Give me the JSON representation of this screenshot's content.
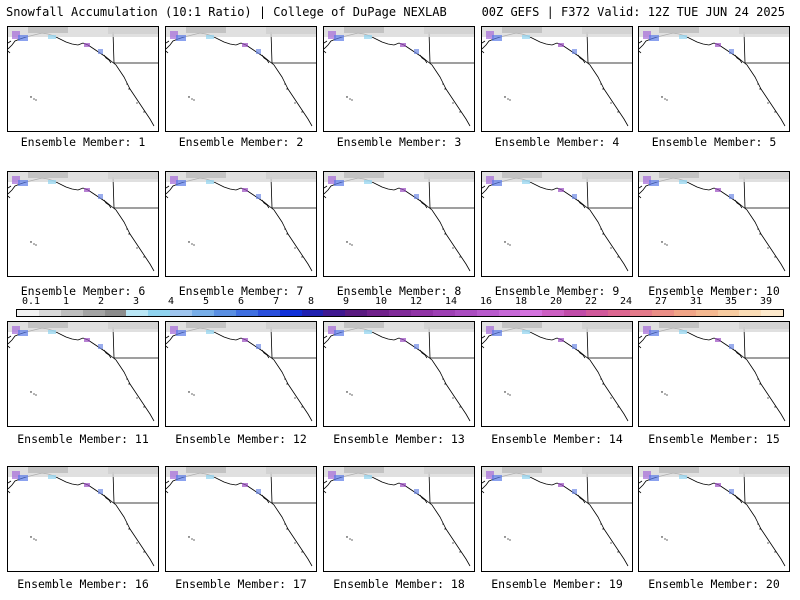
{
  "header": {
    "left": "Snowfall Accumulation (10:1 Ratio) | College of DuPage NEXLAB",
    "right": "00Z GEFS | F372 Valid: 12Z TUE JUN 24 2025"
  },
  "panels": [
    {
      "label": "Ensemble Member: 1"
    },
    {
      "label": "Ensemble Member: 2"
    },
    {
      "label": "Ensemble Member: 3"
    },
    {
      "label": "Ensemble Member: 4"
    },
    {
      "label": "Ensemble Member: 5"
    },
    {
      "label": "Ensemble Member: 6"
    },
    {
      "label": "Ensemble Member: 7"
    },
    {
      "label": "Ensemble Member: 8"
    },
    {
      "label": "Ensemble Member: 9"
    },
    {
      "label": "Ensemble Member: 10"
    },
    {
      "label": "Ensemble Member: 11"
    },
    {
      "label": "Ensemble Member: 12"
    },
    {
      "label": "Ensemble Member: 13"
    },
    {
      "label": "Ensemble Member: 14"
    },
    {
      "label": "Ensemble Member: 15"
    },
    {
      "label": "Ensemble Member: 16"
    },
    {
      "label": "Ensemble Member: 17"
    },
    {
      "label": "Ensemble Member: 18"
    },
    {
      "label": "Ensemble Member: 19"
    },
    {
      "label": "Ensemble Member: 20"
    }
  ],
  "colorbar": {
    "ticks": [
      "0.1",
      "1",
      "2",
      "3",
      "4",
      "5",
      "6",
      "7",
      "8",
      "9",
      "10",
      "12",
      "14",
      "16",
      "18",
      "20",
      "22",
      "24",
      "27",
      "31",
      "35",
      "39"
    ],
    "colors": [
      "#f2f2f2",
      "#d9d9d9",
      "#bdbdbd",
      "#a3a3a3",
      "#8c8c8c",
      "#b9e6f5",
      "#8fd3ef",
      "#9ec5ee",
      "#78aee8",
      "#5a8fe2",
      "#3f6fe0",
      "#2a4fdc",
      "#1030d8",
      "#2020b0",
      "#401890",
      "#5a1a80",
      "#70208a",
      "#802a98",
      "#9033a5",
      "#9d3fb3",
      "#aa4cc0",
      "#b85acc",
      "#c668d6",
      "#d473de",
      "#cc5fc2",
      "#c04ba8",
      "#d0589a",
      "#dc6690",
      "#e47a8a",
      "#ea8e86",
      "#f0a486",
      "#f4b890",
      "#f7cba0",
      "#fadcb6",
      "#fde9cc"
    ]
  }
}
